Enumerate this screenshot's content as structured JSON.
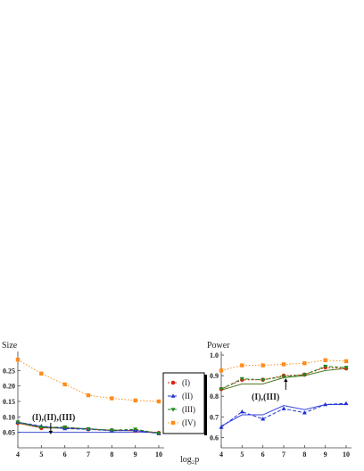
{
  "chart_data": [
    {
      "type": "line",
      "title": "Size",
      "xlabel": "log₂p",
      "ylabel": "Size",
      "x": [
        4,
        5,
        6,
        7,
        8,
        9,
        10
      ],
      "xlim": [
        4,
        10
      ],
      "ylim": [
        0.0,
        0.3
      ],
      "xticks": [
        "4",
        "5",
        "6",
        "7",
        "8",
        "9",
        "10"
      ],
      "yticks": [
        "0.05",
        "0.10",
        "0.15",
        "0.20",
        "0.25"
      ],
      "reference_line": 0.05,
      "annotation": "(I),(II),(III)",
      "annotation_x": 5.4,
      "series": [
        {
          "name": "(I)",
          "values": [
            0.08,
            0.064,
            0.066,
            0.06,
            0.057,
            0.056,
            0.048
          ]
        },
        {
          "name": "(II)",
          "values": [
            0.083,
            0.07,
            0.062,
            0.06,
            0.055,
            0.057,
            0.046
          ]
        },
        {
          "name": "(III)",
          "values": [
            0.083,
            0.066,
            0.067,
            0.061,
            0.057,
            0.06,
            0.047
          ]
        },
        {
          "name": "(IV)",
          "values": [
            0.285,
            0.24,
            0.205,
            0.17,
            0.16,
            0.153,
            0.15
          ]
        }
      ],
      "smooth_series": [
        {
          "values": [
            0.08,
            0.065,
            0.063,
            0.061,
            0.057,
            0.055,
            0.049
          ]
        },
        {
          "values": [
            0.083,
            0.068,
            0.064,
            0.062,
            0.056,
            0.056,
            0.047
          ]
        }
      ]
    },
    {
      "type": "line",
      "title": "Power",
      "xlabel": "",
      "ylabel": "Power",
      "x": [
        4,
        5,
        6,
        7,
        8,
        9,
        10
      ],
      "xlim": [
        4,
        10
      ],
      "ylim": [
        0.55,
        1.0
      ],
      "xticks": [
        "4",
        "5",
        "6",
        "7",
        "8",
        "9",
        "10"
      ],
      "yticks": [
        "0.6",
        "0.7",
        "0.8",
        "0.9",
        "1.0"
      ],
      "annotation": "(I),(III)",
      "annotation_x": 7.1,
      "series": [
        {
          "name": "(I)",
          "values": [
            0.835,
            0.88,
            0.88,
            0.9,
            0.905,
            0.94,
            0.935
          ]
        },
        {
          "name": "(II)",
          "values": [
            0.65,
            0.725,
            0.69,
            0.74,
            0.72,
            0.76,
            0.765
          ]
        },
        {
          "name": "(III)",
          "values": [
            0.835,
            0.885,
            0.88,
            0.895,
            0.905,
            0.945,
            0.94
          ]
        },
        {
          "name": "(IV)",
          "values": [
            0.925,
            0.95,
            0.95,
            0.955,
            0.96,
            0.975,
            0.97
          ]
        }
      ],
      "smooth_series": [
        {
          "values": [
            0.83,
            0.86,
            0.86,
            0.89,
            0.9,
            0.925,
            0.935
          ]
        },
        {
          "values": [
            0.655,
            0.71,
            0.71,
            0.755,
            0.735,
            0.76,
            0.76
          ]
        }
      ]
    }
  ],
  "legend": {
    "placement": "between-panels",
    "entries": [
      {
        "label": "(I)",
        "color": "#dd2211",
        "marker": "circle"
      },
      {
        "label": "(II)",
        "color": "#2233cc",
        "marker": "triangle-up"
      },
      {
        "label": "(III)",
        "color": "#228822",
        "marker": "triangle-down"
      },
      {
        "label": "(IV)",
        "color": "#ff8c1a",
        "marker": "square"
      }
    ]
  },
  "colors": {
    "i": "#dd2211",
    "ii": "#2233cc",
    "iii": "#228822",
    "iv": "#ff8c1a",
    "smooth_i": "#4d7a1f",
    "smooth_ii": "#3344dd",
    "axis": "#444444"
  }
}
